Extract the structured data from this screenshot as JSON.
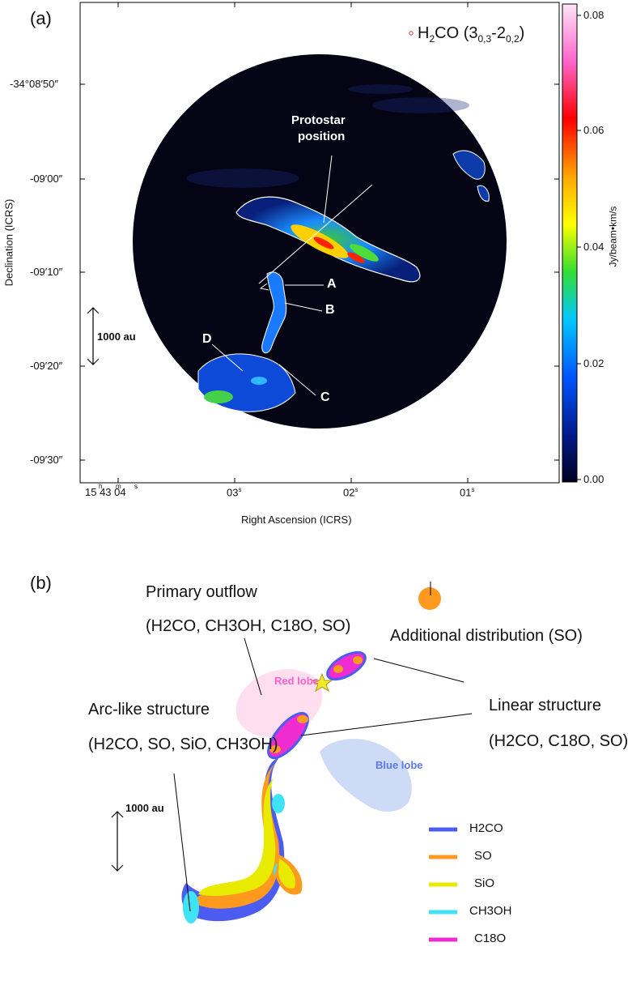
{
  "panel_a": {
    "letter": "(a)",
    "map_label_main": "H",
    "map_label_rest": "CO (3",
    "map_label_sub1": "0,3",
    "map_label_dash": "-2",
    "map_label_sub2": "0,2",
    "map_label_close": ")",
    "protostar_line1": "Protostar",
    "protostar_line2": "position",
    "knots": [
      "A",
      "B",
      "C",
      "D"
    ],
    "scale_label": "1000 au",
    "ylabel": "Declination (ICRS)",
    "xlabel": "Right Ascension (ICRS)",
    "dec_ticks": [
      "-34°08′50″",
      "-09′00″",
      "-09′10″",
      "-09′20″",
      "-09′30″"
    ],
    "ra_ticks": [
      "15 43 04",
      "03",
      "02",
      "01"
    ],
    "ra_super_first": [
      "h",
      "m",
      "s"
    ],
    "ra_super": "s",
    "colorbar": {
      "ticks": [
        "0.08",
        "0.06",
        "0.04",
        "0.02",
        "0.00"
      ],
      "label": "Jy/beam•km/s",
      "colors": [
        "#ffd6f2",
        "#ff66cc",
        "#ff0000",
        "#ffa600",
        "#ffff00",
        "#33dd33",
        "#00c8ff",
        "#0055ff",
        "#001a8c",
        "#000020"
      ]
    }
  },
  "panel_b": {
    "letter": "(b)",
    "primary_outflow": "Primary outflow",
    "primary_outflow_species": "(H2CO, CH3OH, C18O, SO)",
    "additional": "Additional distribution (SO)",
    "arc_like": "Arc-like structure",
    "arc_like_species": "(H2CO, SO, SiO, CH3OH)",
    "linear": "Linear structure",
    "linear_species": "(H2CO, C18O, SO)",
    "red_lobe": "Red lobe",
    "blue_lobe": "Blue lobe",
    "scale_label": "1000 au",
    "legend": [
      {
        "name": "H2CO",
        "color": "#4d5cf0"
      },
      {
        "name": "SO",
        "color": "#ff9a1f"
      },
      {
        "name": "SiO",
        "color": "#e8ea00"
      },
      {
        "name": "CH3OH",
        "color": "#3fe3f5"
      },
      {
        "name": "C18O",
        "color": "#ee2ccf"
      }
    ]
  }
}
